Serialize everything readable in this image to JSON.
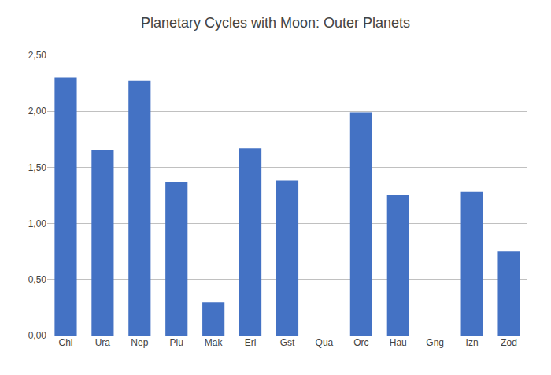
{
  "chart_data": {
    "type": "bar",
    "title": "Planetary Cycles with Moon: Outer Planets",
    "categories": [
      "Chi",
      "Ura",
      "Nep",
      "Plu",
      "Mak",
      "Eri",
      "Gst",
      "Qua",
      "Orc",
      "Hau",
      "Gng",
      "Izn",
      "Zod"
    ],
    "values": [
      2.3,
      1.65,
      2.27,
      1.37,
      0.3,
      1.67,
      1.38,
      0.0,
      1.99,
      1.25,
      0.0,
      1.28,
      0.75
    ],
    "color": "#4472C4",
    "ylim": [
      0,
      2.5
    ],
    "yticks": [
      {
        "value": 0,
        "label": "0,00"
      },
      {
        "value": 0.5,
        "label": "0,50"
      },
      {
        "value": 1.0,
        "label": "1,00"
      },
      {
        "value": 1.5,
        "label": "1,50"
      },
      {
        "value": 2.0,
        "label": "2,00"
      },
      {
        "value": 2.5,
        "label": "2,50"
      }
    ],
    "grid": true
  }
}
